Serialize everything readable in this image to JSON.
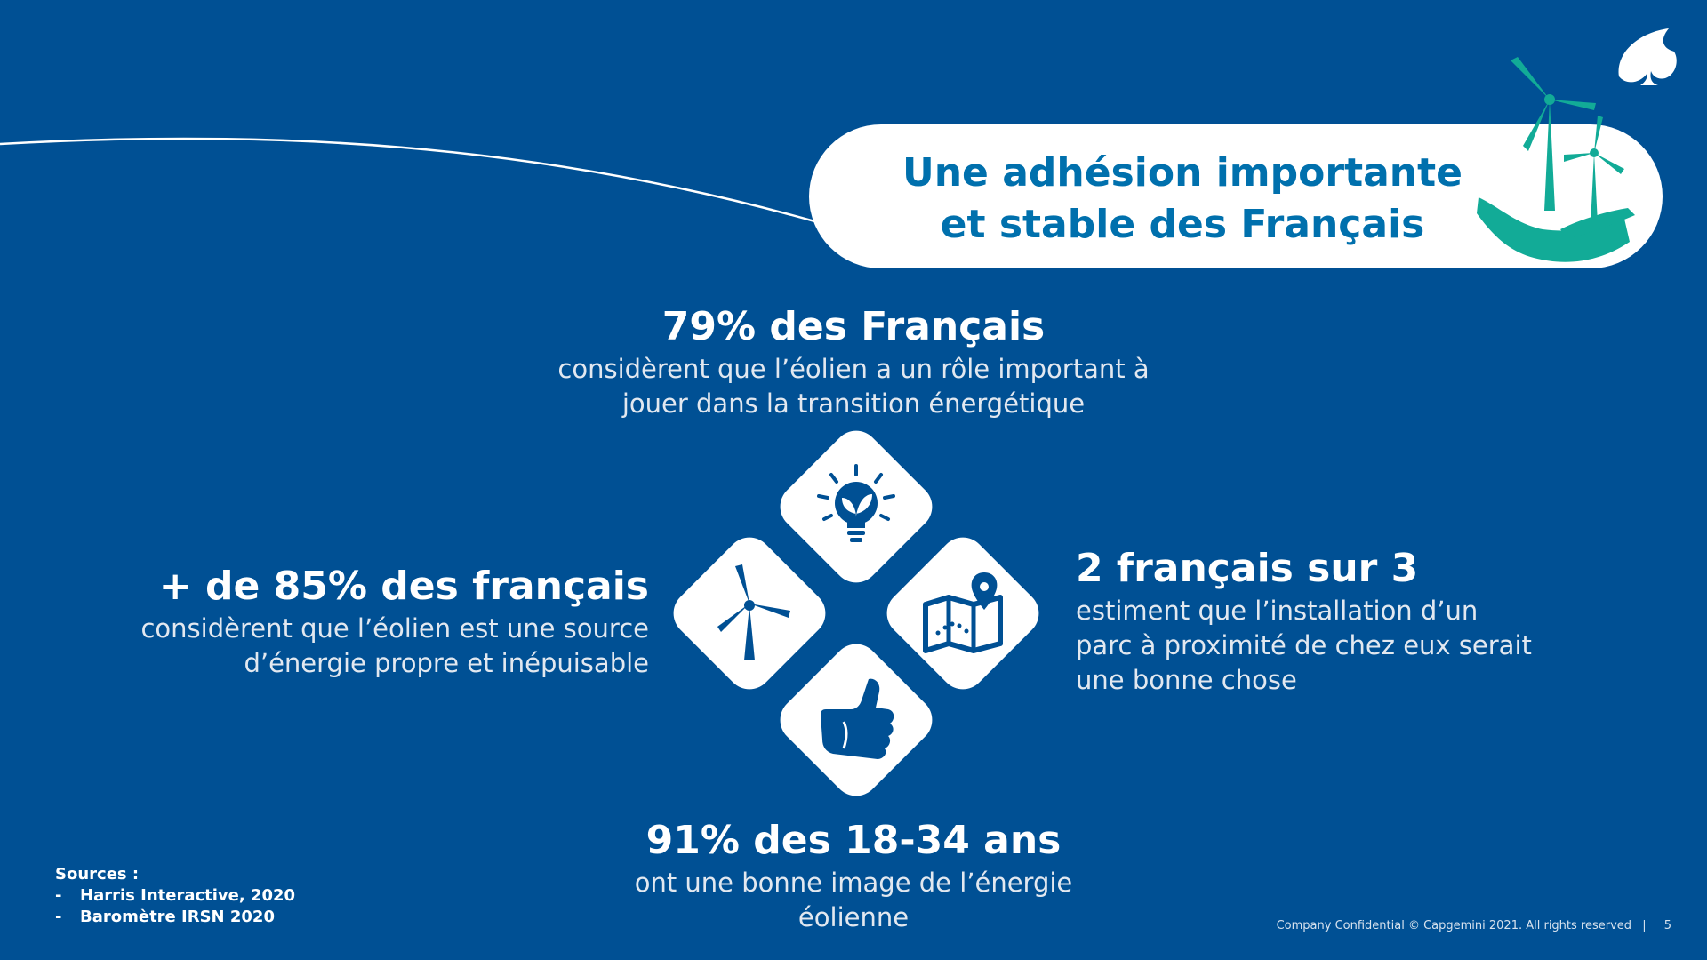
{
  "title": {
    "line1": "Une adhésion importante",
    "line2": "et stable des Français"
  },
  "stats": {
    "top": {
      "title": "79% des Français",
      "desc_line1": "considèrent que l’éolien a un rôle important à",
      "desc_line2": "jouer dans la transition énergétique"
    },
    "left": {
      "title": "+ de 85% des français",
      "desc_line1": "considèrent que l’éolien est une source",
      "desc_line2": "d’énergie propre et inépuisable"
    },
    "right": {
      "title": "2 français sur 3",
      "desc_line1": "estiment que l’installation d’un",
      "desc_line2": "parc à proximité de chez eux serait",
      "desc_line3": "une bonne chose"
    },
    "bottom": {
      "title": "91% des 18-34 ans",
      "desc_line1": "ont une bonne image de l’énergie",
      "desc_line2": "éolienne"
    }
  },
  "sources": {
    "heading": "Sources :",
    "items": [
      "Harris Interactive, 2020",
      "Baromètre IRSN 2020"
    ]
  },
  "footer": {
    "text": "Company Confidential © Capgemini 2021. All rights reserved",
    "separator": "|",
    "page": "5"
  },
  "icons": {
    "tile_top": "lightbulb-leaf-icon",
    "tile_left": "wind-turbine-icon",
    "tile_right": "map-pin-icon",
    "tile_bottom": "thumbs-up-icon",
    "title_badge": "hand-wind-turbines-icon",
    "brand": "capgemini-spade-logo"
  },
  "colors": {
    "background": "#005094",
    "title_text": "#0070ad",
    "accent": "#12ab97"
  }
}
